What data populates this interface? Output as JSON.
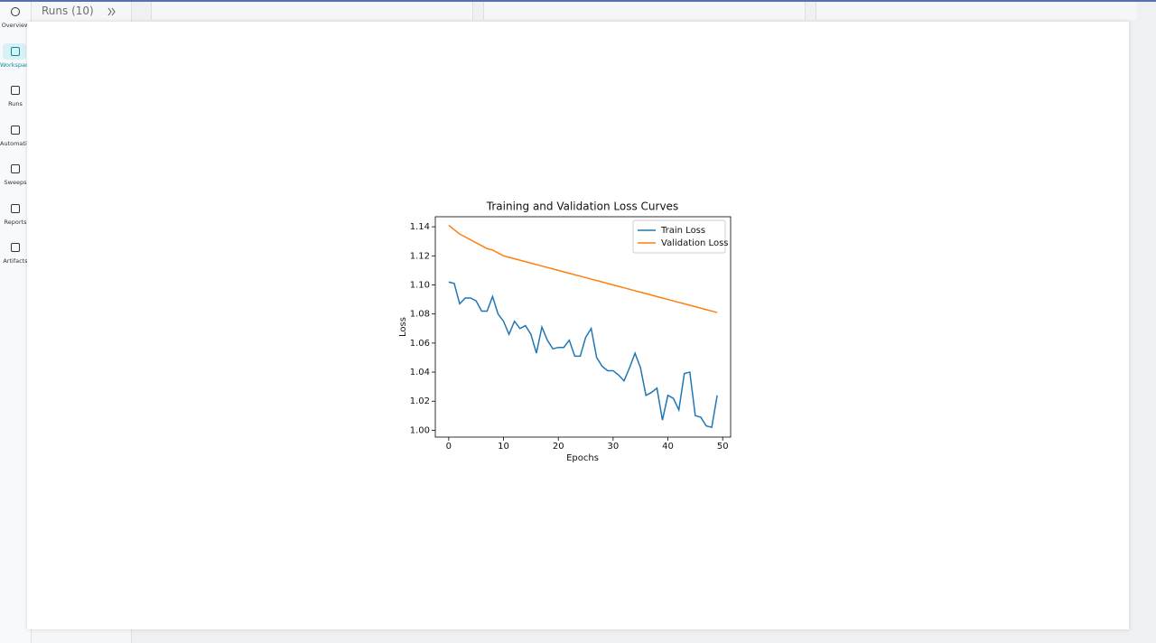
{
  "header": {
    "title": "Runs (10)"
  },
  "sidebar": {
    "items": [
      "Overview",
      "Workspace",
      "Runs",
      "Automations",
      "Sweeps",
      "Reports",
      "Artifacts"
    ]
  },
  "chart_data": {
    "type": "line",
    "title": "Training and Validation Loss Curves",
    "xlabel": "Epochs",
    "ylabel": "Loss",
    "x": [
      0,
      1,
      2,
      3,
      4,
      5,
      6,
      7,
      8,
      9,
      10,
      11,
      12,
      13,
      14,
      15,
      16,
      17,
      18,
      19,
      20,
      21,
      22,
      23,
      24,
      25,
      26,
      27,
      28,
      29,
      30,
      31,
      32,
      33,
      34,
      35,
      36,
      37,
      38,
      39,
      40,
      41,
      42,
      43,
      44,
      45,
      46,
      47,
      48,
      49
    ],
    "series": [
      {
        "name": "Train Loss",
        "color": "#1f77b4",
        "values": [
          1.102,
          1.101,
          1.087,
          1.091,
          1.091,
          1.089,
          1.082,
          1.082,
          1.092,
          1.08,
          1.075,
          1.066,
          1.075,
          1.07,
          1.072,
          1.066,
          1.053,
          1.071,
          1.062,
          1.056,
          1.057,
          1.057,
          1.062,
          1.051,
          1.051,
          1.064,
          1.07,
          1.05,
          1.044,
          1.041,
          1.041,
          1.038,
          1.034,
          1.043,
          1.053,
          1.043,
          1.024,
          1.026,
          1.029,
          1.007,
          1.024,
          1.022,
          1.014,
          1.039,
          1.04,
          1.01,
          1.009,
          1.003,
          1.002,
          1.024
        ]
      },
      {
        "name": "Validation Loss",
        "color": "#ff7f0e",
        "values": [
          1.141,
          1.138,
          1.135,
          1.133,
          1.131,
          1.129,
          1.127,
          1.125,
          1.124,
          1.122,
          1.12,
          1.119,
          1.118,
          1.117,
          1.116,
          1.115,
          1.114,
          1.113,
          1.112,
          1.111,
          1.11,
          1.109,
          1.108,
          1.107,
          1.106,
          1.105,
          1.104,
          1.103,
          1.102,
          1.101,
          1.1,
          1.099,
          1.098,
          1.097,
          1.096,
          1.095,
          1.094,
          1.093,
          1.092,
          1.091,
          1.09,
          1.089,
          1.088,
          1.087,
          1.086,
          1.085,
          1.084,
          1.083,
          1.082,
          1.081
        ]
      }
    ],
    "xlim": [
      -2.45,
      51.45
    ],
    "ylim": [
      0.9953,
      1.1469
    ],
    "xticks": [
      0,
      10,
      20,
      30,
      40,
      50
    ],
    "yticks": [
      {
        "value": 1,
        "label": "1.00"
      },
      1.02,
      1.04,
      1.06,
      1.08,
      {
        "value": 1.1,
        "label": "1.10"
      },
      1.12,
      1.14
    ],
    "legend": "upper right"
  }
}
